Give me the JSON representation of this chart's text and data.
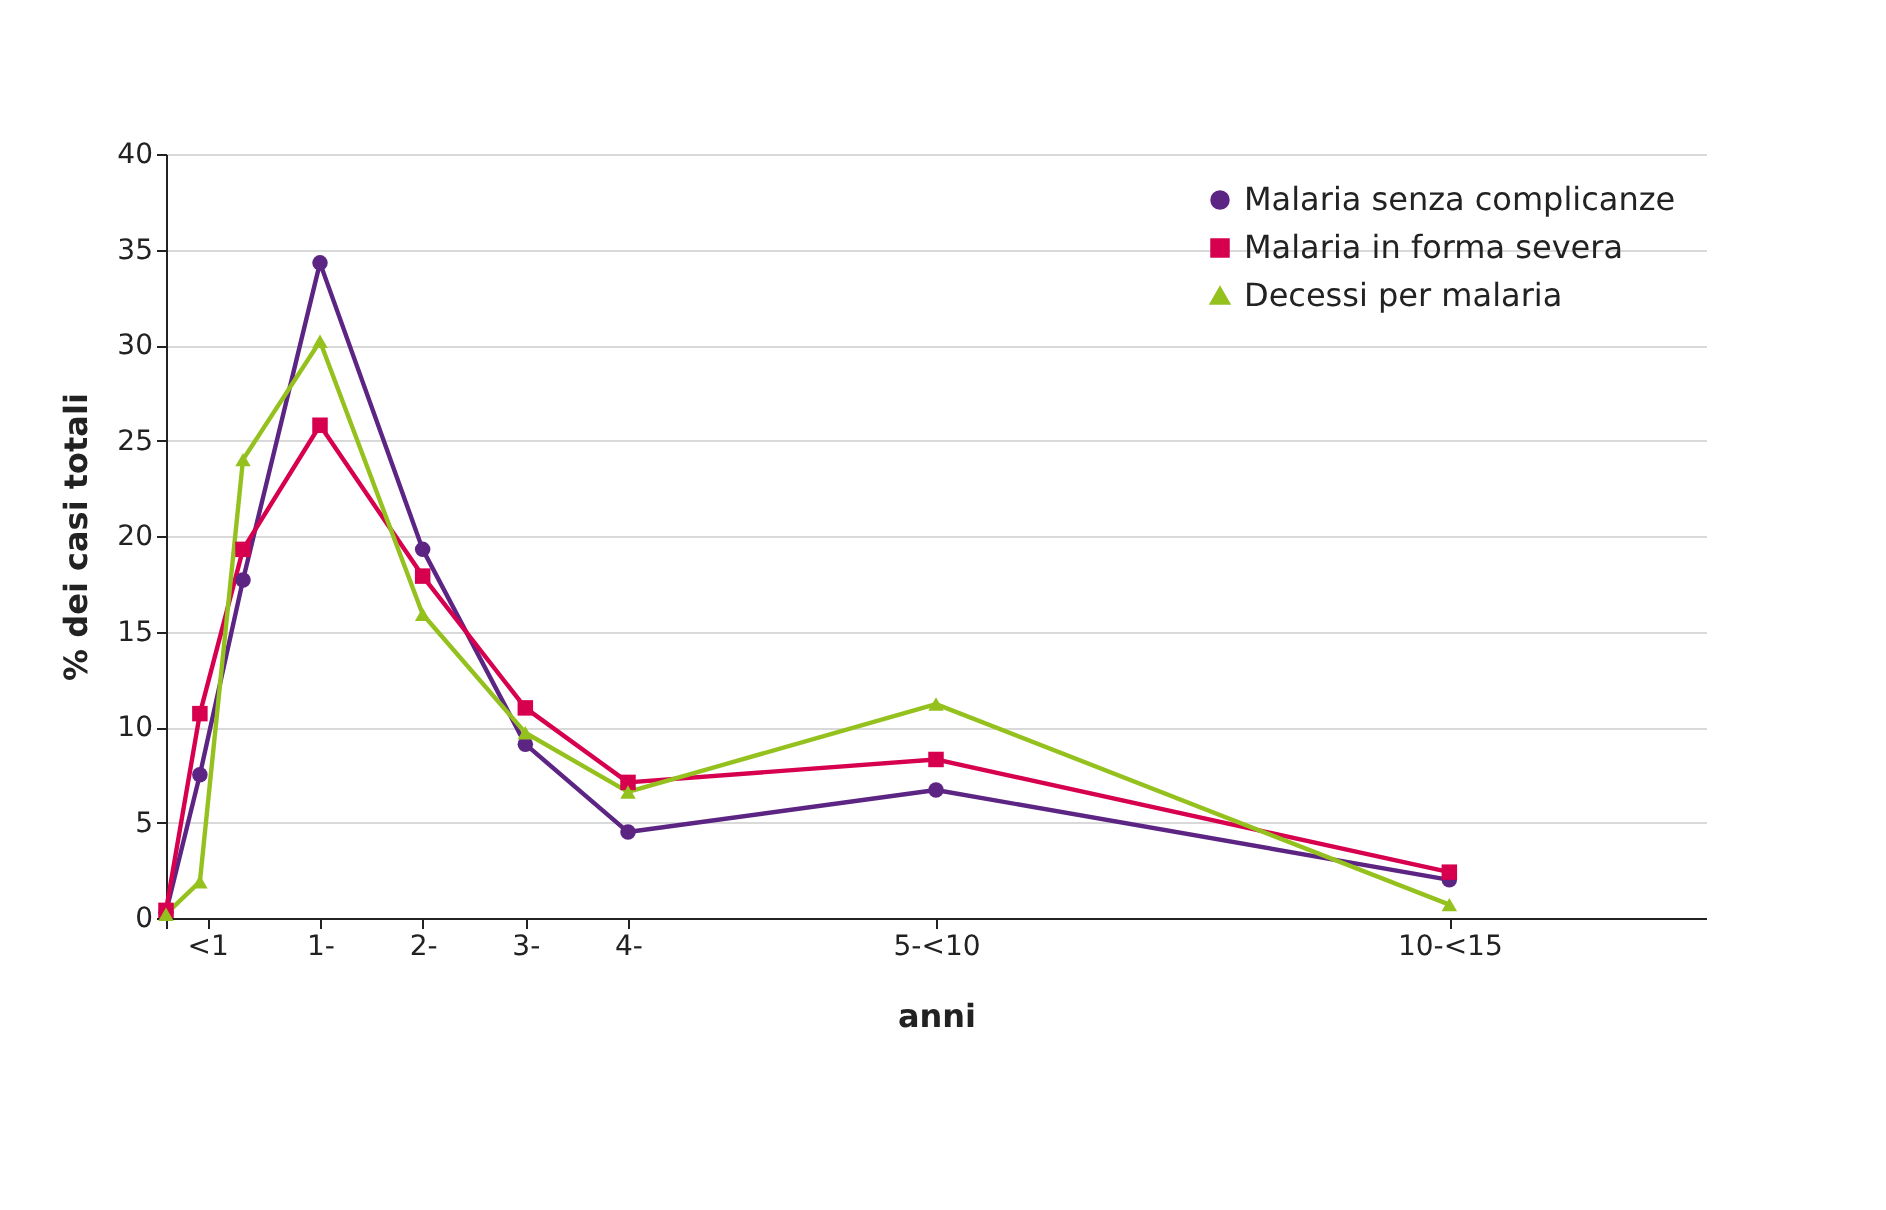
{
  "chart_data": {
    "type": "line",
    "xlabel": "anni",
    "ylabel": "% dei casi totali",
    "x": [
      0,
      0.33,
      0.75,
      1.5,
      2.5,
      3.5,
      4.5,
      7.5,
      12.5
    ],
    "xlim": [
      0,
      15
    ],
    "xticks": [
      {
        "value": 0,
        "label": null
      },
      {
        "value": 0.4,
        "label": "<1"
      },
      {
        "value": 1.5,
        "label": "1-"
      },
      {
        "value": 2.5,
        "label": "2-"
      },
      {
        "value": 3.5,
        "label": "3-"
      },
      {
        "value": 4.5,
        "label": "4-"
      },
      {
        "value": 7.5,
        "label": "5-<10"
      },
      {
        "value": 12.5,
        "label": "10-<15"
      }
    ],
    "ylim": [
      0,
      40
    ],
    "yticks": [
      0,
      5,
      10,
      15,
      20,
      25,
      30,
      35,
      40
    ],
    "grid": "y",
    "legend": "top right",
    "line_style": "solid",
    "series": [
      {
        "name": "Malaria senza complicanze",
        "color": "#5c2483",
        "marker": "circle",
        "values": [
          0.3,
          7.5,
          17.7,
          34.3,
          19.3,
          9.1,
          4.5,
          6.7,
          2.0
        ]
      },
      {
        "name": "Malaria in forma severa",
        "color": "#d6004f",
        "marker": "square",
        "values": [
          0.4,
          10.7,
          19.3,
          25.8,
          17.9,
          11.0,
          7.1,
          8.3,
          2.4
        ]
      },
      {
        "name": "Decessi per malaria",
        "color": "#95c11f",
        "marker": "triangle",
        "values": [
          0.2,
          1.9,
          24.0,
          30.2,
          15.9,
          9.7,
          6.6,
          11.2,
          0.7
        ]
      }
    ]
  }
}
